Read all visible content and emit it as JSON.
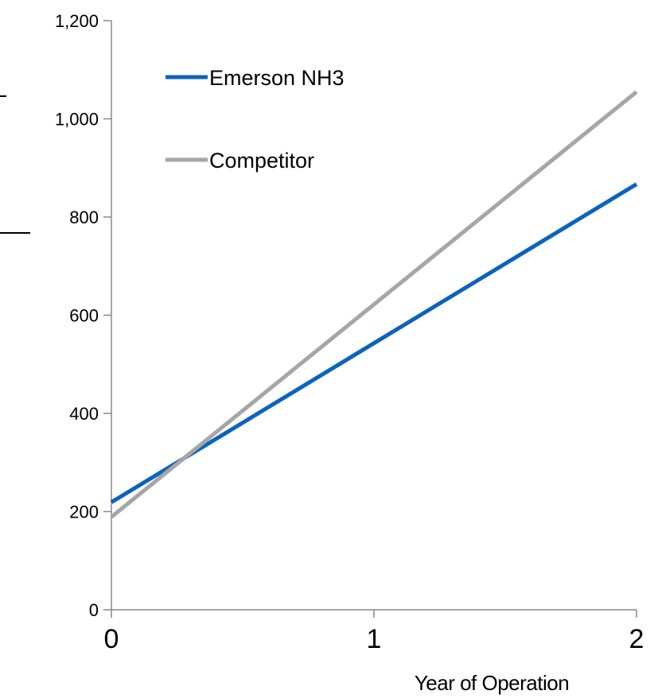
{
  "chart_data": {
    "type": "line",
    "x": [
      0,
      1,
      2
    ],
    "x_ticks": [
      "0",
      "1",
      "2"
    ],
    "xlabel": "Year of Operation",
    "ylabel": "",
    "ylim": [
      0,
      1200
    ],
    "y_ticks": [
      "0",
      "200",
      "400",
      "600",
      "800",
      "1,000",
      "1,200"
    ],
    "y_tick_values": [
      0,
      200,
      400,
      600,
      800,
      1000,
      1200
    ],
    "grid": false,
    "legend_position": "top-left",
    "series": [
      {
        "name": "Emerson NH3",
        "color": "#0b63be",
        "values": [
          219,
          543,
          867
        ]
      },
      {
        "name": "Competitor",
        "color": "#a6a6a6",
        "values": [
          189,
          622,
          1055
        ]
      }
    ]
  }
}
